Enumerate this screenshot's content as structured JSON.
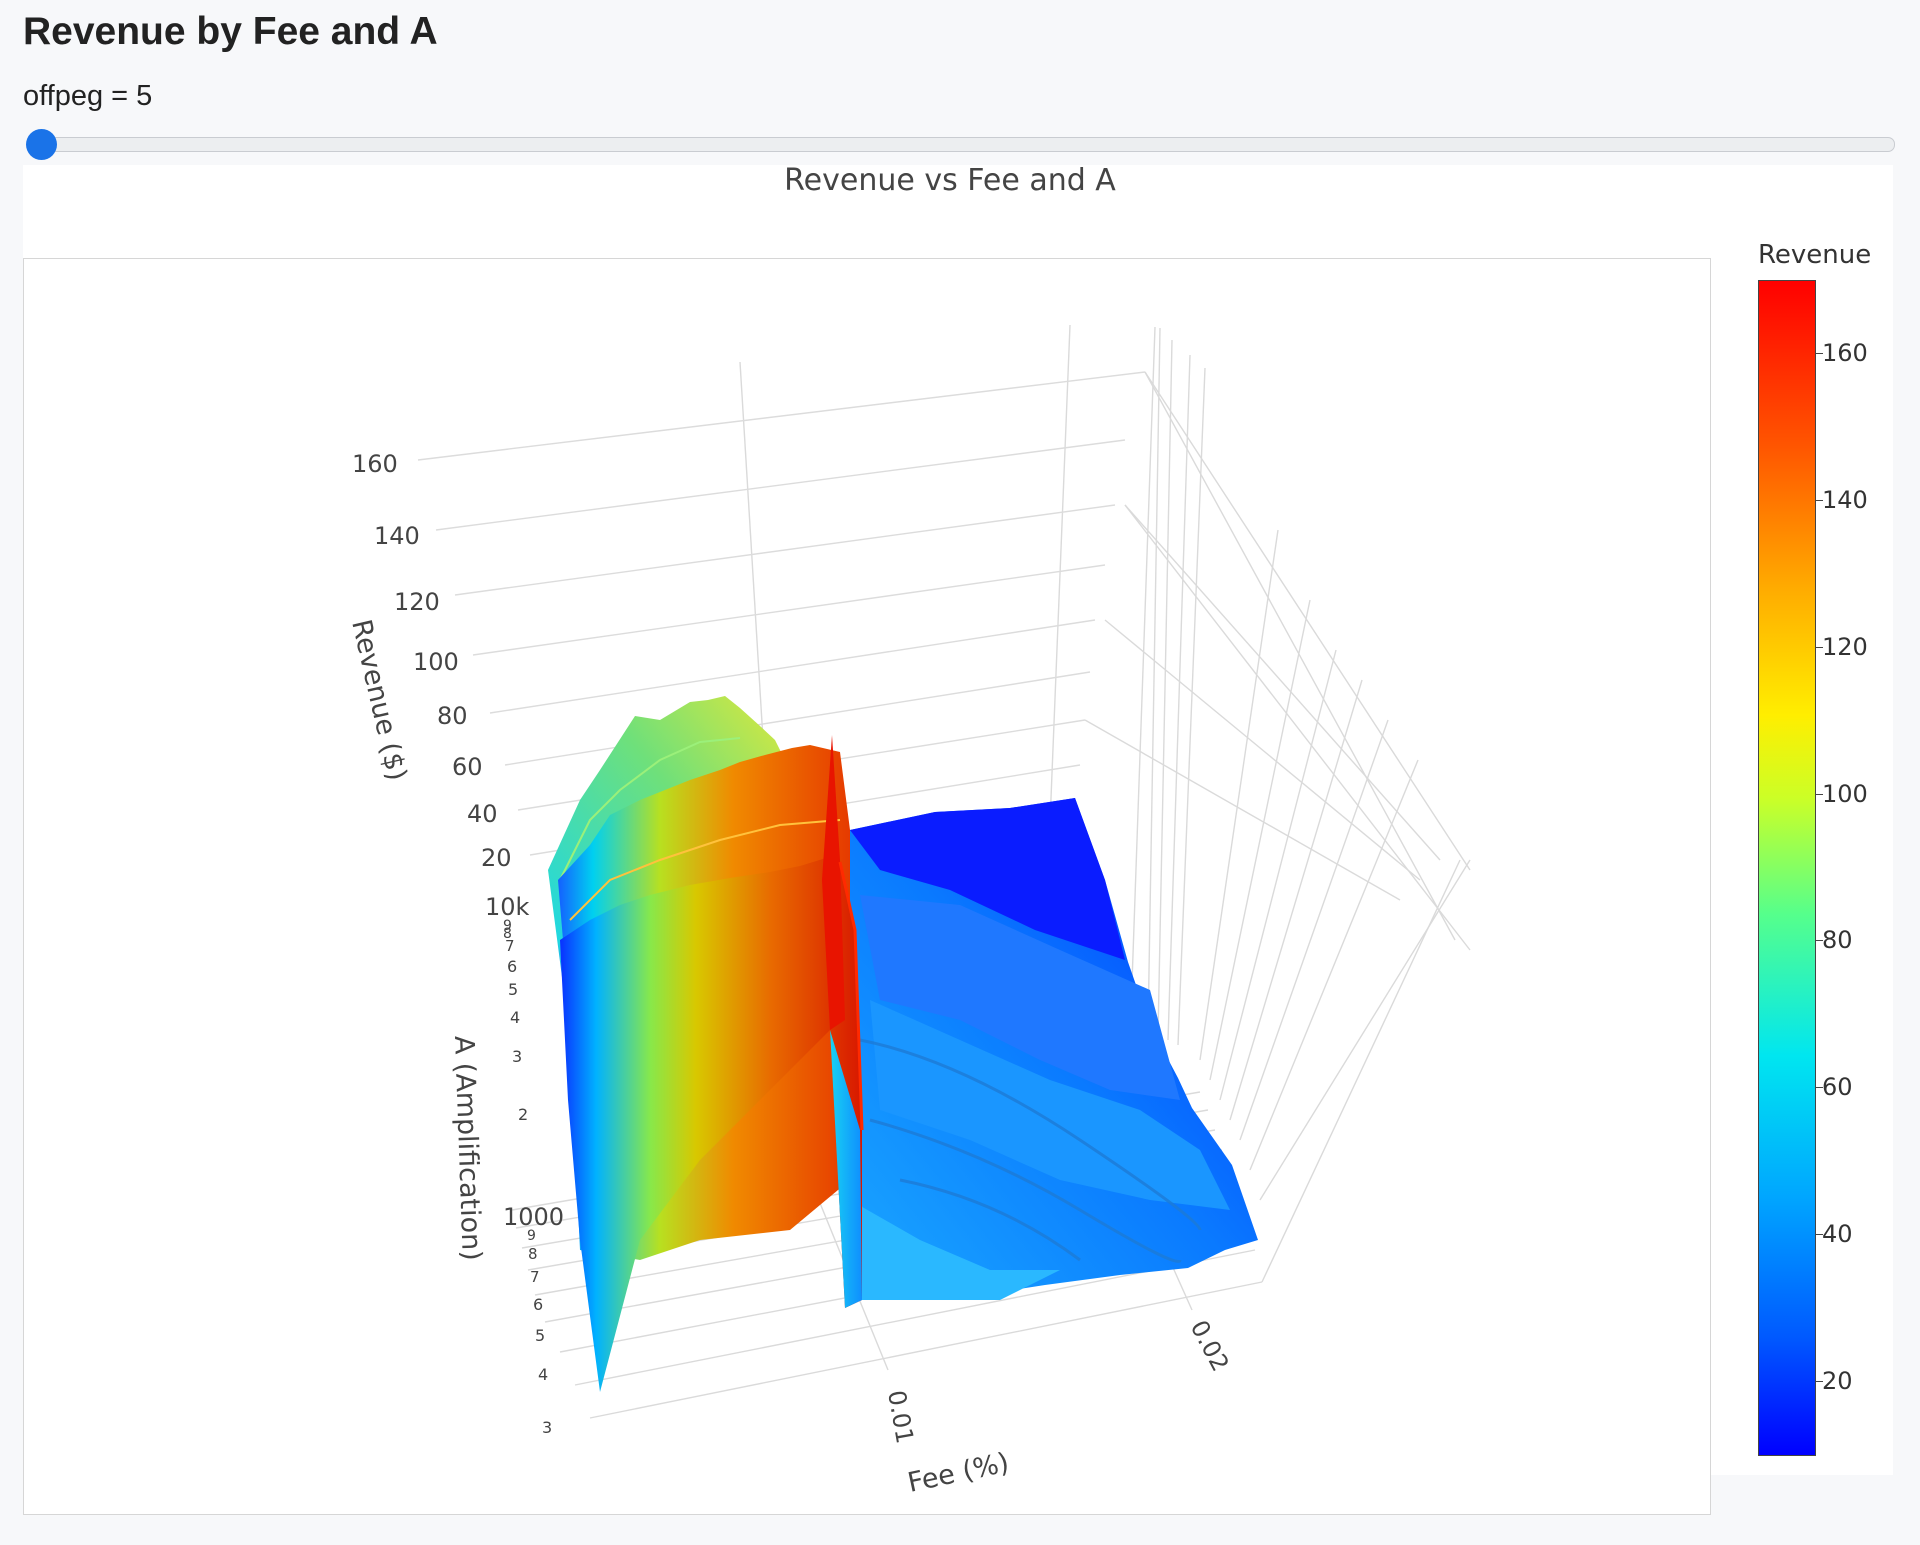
{
  "page": {
    "title": "Revenue by Fee and A"
  },
  "slider": {
    "label": "offpeg = 5",
    "name": "offpeg",
    "value": 5
  },
  "chart_data": {
    "type": "surface",
    "title": "Revenue vs Fee and A",
    "xlabel": "Fee (%)",
    "ylabel": "A (Amplification)",
    "zlabel": "Revenue ($)",
    "x_ticks": [
      "0.01",
      "0.02"
    ],
    "y_scale": "log",
    "y_ticks": [
      "3",
      "4",
      "5",
      "6",
      "7",
      "8",
      "9",
      "1000",
      "2",
      "3",
      "4",
      "5",
      "6",
      "7",
      "8",
      "9",
      "10k"
    ],
    "z_ticks": [
      "20",
      "40",
      "60",
      "80",
      "100",
      "120",
      "140",
      "160"
    ],
    "zlim": [
      10,
      170
    ],
    "colorscale": "jet",
    "colorbar": {
      "title": "Revenue",
      "ticks": [
        20,
        40,
        60,
        80,
        100,
        120,
        140,
        160
      ],
      "range": [
        10,
        170
      ]
    },
    "surface_summary": {
      "peak_revenue": 168,
      "peak_fee": 0.008,
      "low_fee_ridge_revenue": 80,
      "high_fee_plateau_revenue": [
        15,
        40
      ]
    }
  }
}
